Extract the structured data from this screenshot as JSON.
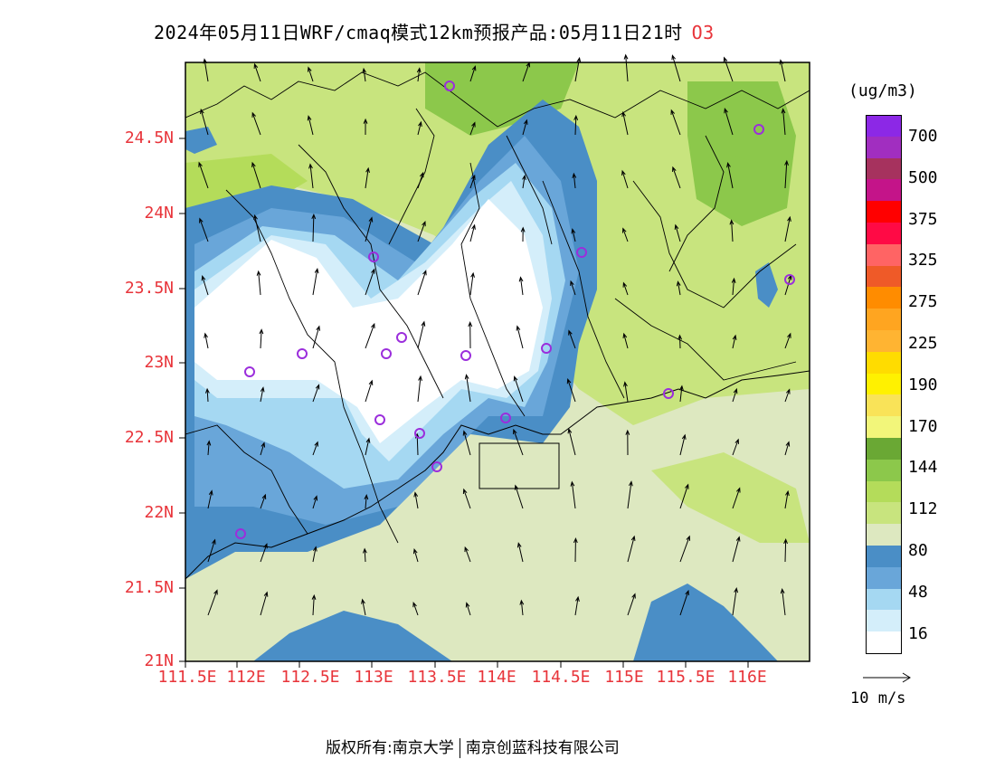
{
  "title": {
    "text": "2024年05月11日WRF/cmaq模式12km预报产品:05月11日21时",
    "variable": "O3",
    "variable_color": "#e8343a"
  },
  "axes": {
    "lat_labels": [
      "24.5N",
      "24N",
      "23.5N",
      "23N",
      "22.5N",
      "22N",
      "21.5N",
      "21N"
    ],
    "lon_labels": [
      "111.5E",
      "112E",
      "112.5E",
      "113E",
      "113.5E",
      "114E",
      "114.5E",
      "115E",
      "115.5E",
      "116E"
    ],
    "label_color": "#e8343a"
  },
  "legend": {
    "unit": "(ug/m3)",
    "labels": [
      "700",
      "500",
      "375",
      "325",
      "275",
      "225",
      "190",
      "170",
      "144",
      "112",
      "80",
      "48",
      "16"
    ],
    "colors": [
      "#8c28e6",
      "#a12ec0",
      "#a6325e",
      "#c41489",
      "#ff0000",
      "#ff0a45",
      "#ff6464",
      "#ef5a28",
      "#ff8c00",
      "#ffa520",
      "#ffb432",
      "#ffdc00",
      "#fff100",
      "#f9e358",
      "#f2f67a",
      "#6aa834",
      "#8cc84b",
      "#b4dc5a",
      "#c8e47e",
      "#dde8c0",
      "#4a8ec6",
      "#69a6d9",
      "#a5d8f2",
      "#d4eefa",
      "#ffffff"
    ]
  },
  "wind_reference": {
    "label": "10 m/s"
  },
  "stations_marker_color": "#9b2edc",
  "footer": {
    "left": "版权所有:南京大学",
    "right": "南京创蓝科技有限公司"
  }
}
